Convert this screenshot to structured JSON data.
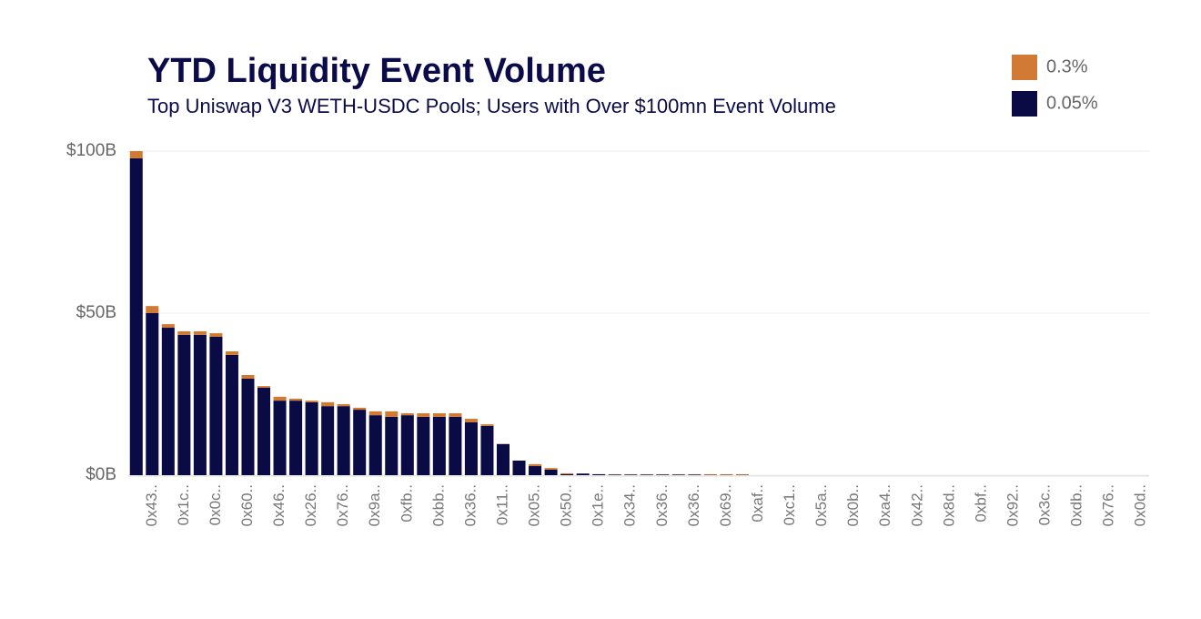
{
  "chart_data": {
    "type": "stacked_bar",
    "title": "YTD Liquidity Event Volume",
    "subtitle": "Top Uniswap V3 WETH-USDC Pools; Users with Over $100mn Event Volume",
    "categories": [
      null,
      "0x43..",
      null,
      "0x1c..",
      null,
      "0x0c..",
      null,
      "0x60..",
      null,
      "0x46..",
      null,
      "0x26..",
      null,
      "0x76..",
      null,
      "0x9a..",
      null,
      "0xfb..",
      null,
      "0xbb..",
      null,
      "0x36..",
      null,
      "0x11..",
      null,
      "0x05..",
      null,
      "0x50..",
      null,
      "0x1e..",
      null,
      "0x34..",
      null,
      "0x36..",
      null,
      "0x36..",
      null,
      "0x69..",
      null,
      "0xaf..",
      null,
      "0xc1..",
      null,
      "0x5a..",
      null,
      "0x0b..",
      null,
      "0xa4..",
      null,
      "0x42..",
      null,
      "0x8d..",
      null,
      "0xbf..",
      null,
      "0x92..",
      null,
      "0x3c..",
      null,
      "0xdb..",
      null,
      "0x76..",
      null,
      "0x0d.."
    ],
    "series": [
      {
        "name": "0.3%",
        "color": "#d07a35",
        "values": [
          2.2,
          2.2,
          1.1,
          1.1,
          1.1,
          1.1,
          1.1,
          1.1,
          0.5,
          1.2,
          0.6,
          0.5,
          1.2,
          0.6,
          0.6,
          1.2,
          1.7,
          0.6,
          1.1,
          1.1,
          1.1,
          1.1,
          0.5,
          0.1,
          0,
          0.6,
          0.5,
          0.3,
          0,
          0,
          0.1,
          0.1,
          0.1,
          0.1,
          0.1,
          0.1,
          0.2,
          0.2,
          0.2,
          0,
          0,
          0,
          0,
          0,
          0,
          0,
          0,
          0,
          0,
          0,
          0,
          0,
          0,
          0,
          0,
          0,
          0,
          0,
          0,
          0,
          0,
          0,
          0,
          0
        ]
      },
      {
        "name": "0.05%",
        "color": "#0a0a45",
        "values": [
          97.8,
          50.0,
          45.5,
          43.3,
          43.3,
          42.7,
          37.1,
          29.8,
          27.0,
          23.0,
          23.0,
          22.5,
          21.3,
          21.3,
          20.2,
          18.5,
          18.0,
          18.5,
          18.0,
          18.0,
          18.0,
          16.3,
          15.2,
          9.6,
          4.5,
          2.8,
          1.7,
          0.3,
          0.5,
          0.3,
          0.2,
          0.2,
          0.2,
          0.2,
          0.2,
          0.2,
          0.1,
          0.1,
          0.1,
          0,
          0,
          0,
          0,
          0,
          0,
          0,
          0,
          0,
          0,
          0,
          0,
          0,
          0,
          0,
          0,
          0,
          0,
          0,
          0,
          0,
          0,
          0,
          0,
          0
        ]
      }
    ],
    "ylim": [
      0,
      100
    ],
    "yticks": [
      {
        "value": 0,
        "label": "$0B"
      },
      {
        "value": 50,
        "label": "$50B"
      },
      {
        "value": 100,
        "label": "$100B"
      }
    ],
    "grid": true,
    "legend": "top-right"
  }
}
